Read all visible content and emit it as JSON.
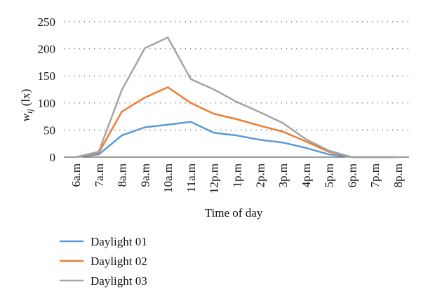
{
  "chart_data": {
    "type": "line",
    "title": "",
    "xlabel": "Time of day",
    "ylabel_main": "w",
    "ylabel_sub": "ij",
    "ylabel_unit": "(lx)",
    "categories": [
      "6a.m",
      "7a.m",
      "8a.m",
      "9a.m",
      "10a.m",
      "11a.m",
      "12p.m",
      "1p.m",
      "2p.m",
      "3p.m",
      "4p.m",
      "5p.m",
      "6p.m",
      "7p.m",
      "8p.m"
    ],
    "ylim": [
      0,
      250
    ],
    "yticks": [
      0,
      50,
      100,
      150,
      200,
      250
    ],
    "grid": true,
    "legend_position": "bottom-left",
    "series": [
      {
        "name": "Daylight 01",
        "color": "#5b9bd5",
        "values": [
          0,
          5,
          40,
          55,
          60,
          65,
          45,
          40,
          32,
          27,
          17,
          5,
          0,
          0,
          0
        ]
      },
      {
        "name": "Daylight 02",
        "color": "#ed7d31",
        "values": [
          0,
          8,
          84,
          110,
          129,
          100,
          80,
          70,
          58,
          47,
          29,
          10,
          0,
          0,
          0
        ]
      },
      {
        "name": "Daylight 03",
        "color": "#a5a5a5",
        "values": [
          0,
          10,
          124,
          201,
          221,
          144,
          125,
          102,
          83,
          63,
          33,
          12,
          0,
          0,
          0
        ]
      }
    ]
  }
}
